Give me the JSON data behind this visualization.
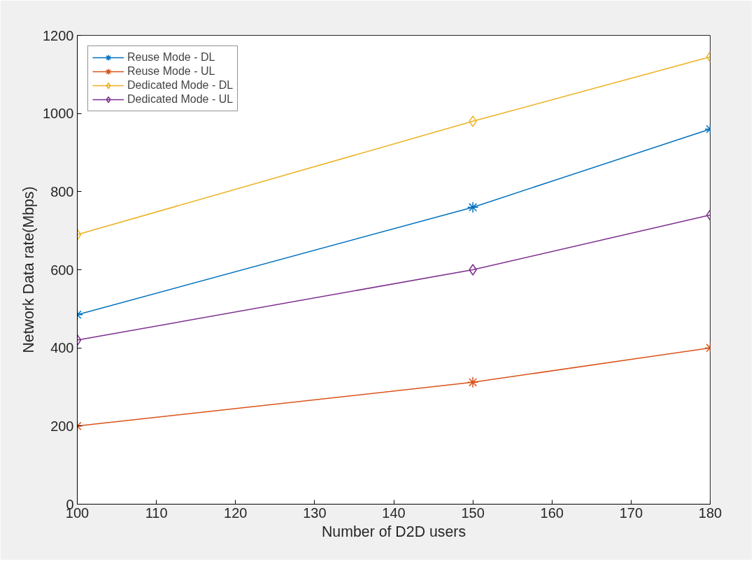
{
  "chart_data": {
    "type": "line",
    "xlabel": "Number of D2D users",
    "ylabel": "Network Data rate(Mbps)",
    "x": [
      100,
      150,
      180
    ],
    "xlim": [
      100,
      180
    ],
    "xticks": [
      100,
      110,
      120,
      130,
      140,
      150,
      160,
      170,
      180
    ],
    "ylim": [
      0,
      1200
    ],
    "yticks": [
      0,
      200,
      400,
      600,
      800,
      1000,
      1200
    ],
    "grid": false,
    "legend": "top left",
    "line_style": "solid",
    "series": [
      {
        "name": "Reuse Mode - DL",
        "color": "#0072bd",
        "marker": "cross",
        "values": [
          485,
          760,
          960
        ]
      },
      {
        "name": "Reuse Mode - UL",
        "color": "#d95319",
        "marker": "cross",
        "values": [
          200,
          312,
          400
        ]
      },
      {
        "name": "Dedicated Mode - DL",
        "color": "#edb120",
        "marker": "diamond",
        "values": [
          690,
          980,
          1145
        ]
      },
      {
        "name": "Dedicated Mode - UL",
        "color": "#7e2f8e",
        "marker": "diamond",
        "values": [
          420,
          600,
          740
        ]
      }
    ]
  }
}
